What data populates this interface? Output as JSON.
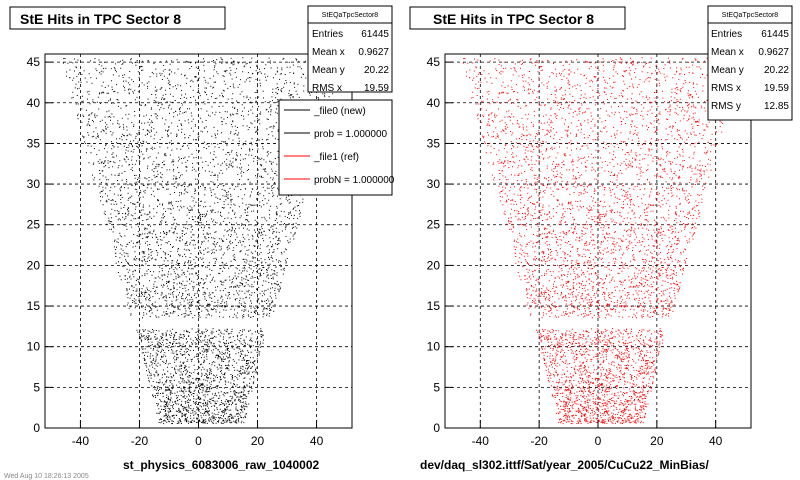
{
  "page": {
    "footer_left": "st_physics_6083006_raw_1040002",
    "footer_right": "dev/daq_sl302.ittf/Sat/year_2005/CuCu22_MinBias/",
    "timestamp_fragment": "Wed Aug 10 18:26:13 2005"
  },
  "chart_data": [
    {
      "type": "scatter",
      "title": "StE Hits in TPC Sector 8",
      "marker_color": "#000000",
      "xlim": [
        -52,
        52
      ],
      "ylim": [
        0,
        46
      ],
      "xticks": [
        -40,
        -20,
        0,
        20,
        40
      ],
      "xtick_labels": [
        "-40",
        "-20",
        "0",
        "20",
        "40"
      ],
      "yticks": [
        0,
        5,
        10,
        15,
        20,
        25,
        30,
        35,
        40,
        45
      ],
      "ytick_labels": [
        "0",
        "5",
        "10",
        "15",
        "20",
        "25",
        "30",
        "35",
        "40",
        "45"
      ],
      "grid": true,
      "stats_box": {
        "name": "StEQaTpcSector8",
        "rows": [
          {
            "label": "Entries",
            "value": "61445"
          },
          {
            "label": "Mean x",
            "value": "0.9627"
          },
          {
            "label": "Mean y",
            "value": "20.22"
          },
          {
            "label": "RMS x",
            "value": "19.59"
          }
        ]
      },
      "legend": {
        "placement": "top-right",
        "entries": [
          {
            "label": "_file0 (new)",
            "color": "#000000"
          },
          {
            "label": "prob = 1.000000",
            "color": "#000000"
          },
          {
            "label": "_file1 (ref)",
            "color": "#ff0000"
          },
          {
            "label": "probN = 1.000000",
            "color": "#ff0000"
          }
        ]
      },
      "entries": 61445,
      "mean_x": 0.9627,
      "mean_y": 20.22,
      "rms_x": 19.59
    },
    {
      "type": "scatter",
      "title": "StE Hits in TPC Sector 8",
      "marker_color": "#ff0000",
      "xlim": [
        -52,
        52
      ],
      "ylim": [
        0,
        46
      ],
      "xticks": [
        -40,
        -20,
        0,
        20,
        40
      ],
      "xtick_labels": [
        "-40",
        "-20",
        "0",
        "20",
        "40"
      ],
      "yticks": [
        0,
        5,
        10,
        15,
        20,
        25,
        30,
        35,
        40,
        45
      ],
      "ytick_labels": [
        "0",
        "5",
        "10",
        "15",
        "20",
        "25",
        "30",
        "35",
        "40",
        "45"
      ],
      "grid": true,
      "stats_box": {
        "name": "StEQaTpcSector8",
        "rows": [
          {
            "label": "Entries",
            "value": "61445"
          },
          {
            "label": "Mean x",
            "value": "0.9627"
          },
          {
            "label": "Mean y",
            "value": "20.22"
          },
          {
            "label": "RMS x",
            "value": "19.59"
          },
          {
            "label": "RMS y",
            "value": "12.85"
          }
        ]
      },
      "entries": 61445,
      "mean_x": 0.9627,
      "mean_y": 20.22,
      "rms_x": 19.59,
      "rms_y": 12.85
    }
  ]
}
